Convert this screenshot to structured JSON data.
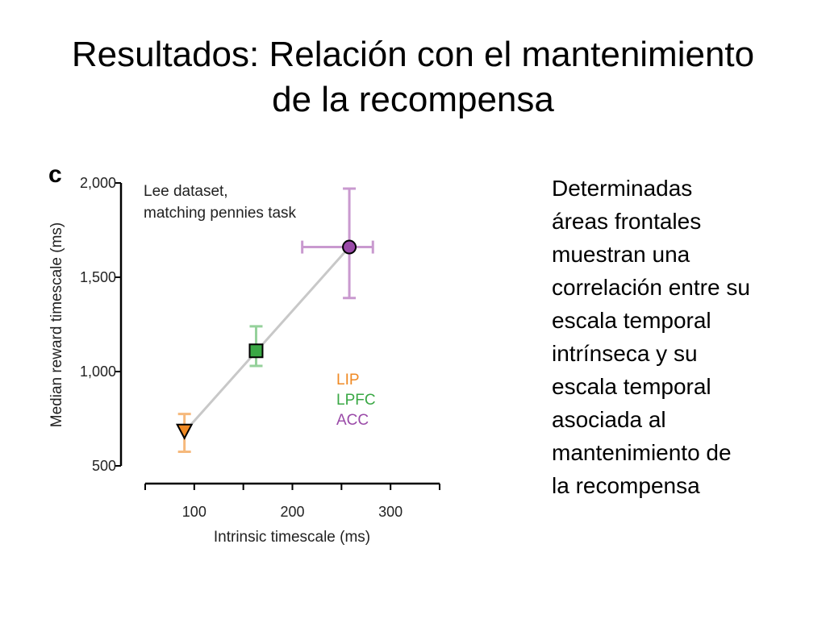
{
  "slide": {
    "title_line1": "Resultados: Relación con el mantenimiento",
    "title_line2": "de la recompensa",
    "body_lines": [
      "Determinadas",
      "áreas frontales",
      "muestran una",
      "correlación entre su",
      "escala temporal",
      "intrínseca y su",
      "escala temporal",
      "asociada al",
      "mantenimiento de",
      "la recompensa"
    ]
  },
  "chart_data": {
    "type": "scatter",
    "panel_label": "c",
    "annotation_lines": [
      "Lee dataset,",
      "matching pennies task"
    ],
    "xlabel": "Intrinsic timescale (ms)",
    "ylabel": "Median reward timescale (ms)",
    "xlim": [
      50,
      350
    ],
    "ylim": [
      500,
      2000
    ],
    "xticks": [
      100,
      200,
      300
    ],
    "xtick_labels": [
      "100",
      "200",
      "300"
    ],
    "yticks": [
      500,
      1000,
      1500,
      2000
    ],
    "ytick_labels": [
      "500",
      "1,000",
      "1,500",
      "2,000"
    ],
    "grid": false,
    "legend_position": "right-middle",
    "fit_line": {
      "x": [
        90,
        258
      ],
      "y": [
        680,
        1660
      ],
      "color": "#c8c8c8"
    },
    "series": [
      {
        "name": "LIP",
        "marker": "triangle-down",
        "color": "#f08a24",
        "light": "#f6b97c",
        "x": 90,
        "y": 685,
        "xerr": [
          90,
          90
        ],
        "yerr": [
          575,
          775
        ]
      },
      {
        "name": "LPFC",
        "marker": "square",
        "color": "#3aa845",
        "light": "#95d19b",
        "x": 163,
        "y": 1110,
        "xerr": [
          163,
          163
        ],
        "yerr": [
          1030,
          1240
        ]
      },
      {
        "name": "ACC",
        "marker": "circle",
        "color": "#9a4aa8",
        "light": "#c999cf",
        "x": 258,
        "y": 1660,
        "xerr": [
          210,
          282
        ],
        "yerr": [
          1390,
          1970
        ]
      }
    ]
  }
}
